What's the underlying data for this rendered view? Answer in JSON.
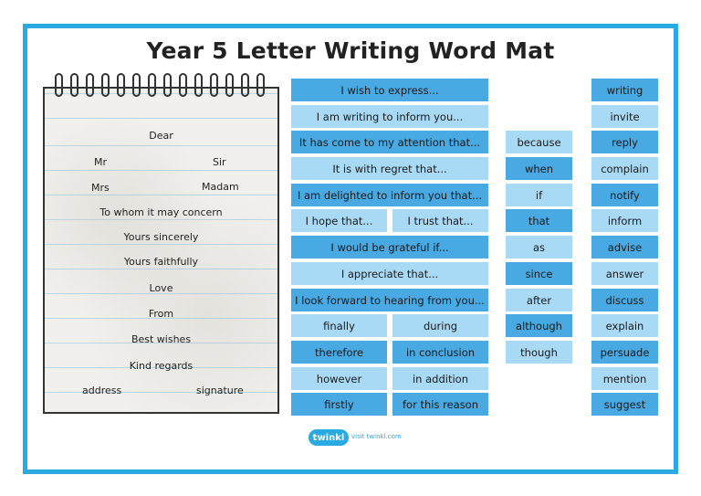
{
  "title": "Year 5 Letter Writing Word Mat",
  "notepad": {
    "dear": "Dear",
    "mr": "Mr",
    "sir": "Sir",
    "mrs": "Mrs",
    "madam": "Madam",
    "whom": "To whom it may concern",
    "sincerely": "Yours sincerely",
    "faithfully": "Yours faithfully",
    "love": "Love",
    "from": "From",
    "best": "Best wishes",
    "kind": "Kind regards",
    "address": "address",
    "signature": "signature"
  },
  "phrases": {
    "p1": "I wish to express...",
    "p2": "I am writing to inform you...",
    "p3": "It has come to my attention that...",
    "p4": "It is with regret that...",
    "p5": "I am delighted to inform you that...",
    "p6a": "I hope that...",
    "p6b": "I trust that...",
    "p7": "I would be grateful if...",
    "p8": "I appreciate that...",
    "p9": "I look forward to hearing from you..."
  },
  "adverbials": {
    "finally": "finally",
    "during": "during",
    "therefore": "therefore",
    "in_conclusion": "in conclusion",
    "however": "however",
    "in_addition": "in addition",
    "firstly": "firstly",
    "for_this_reason": "for this reason"
  },
  "conjunctions": [
    "because",
    "when",
    "if",
    "that",
    "as",
    "since",
    "after",
    "although",
    "though"
  ],
  "verbs": [
    "writing",
    "invite",
    "reply",
    "complain",
    "notify",
    "inform",
    "advise",
    "answer",
    "discuss",
    "explain",
    "persuade",
    "mention",
    "suggest"
  ],
  "footer": {
    "logo": "twinkl",
    "visit": "visit twinkl.com"
  },
  "colors": {
    "border": "#29abe2",
    "dark_cell": "#48a9e3",
    "light_cell": "#a9daf5"
  }
}
